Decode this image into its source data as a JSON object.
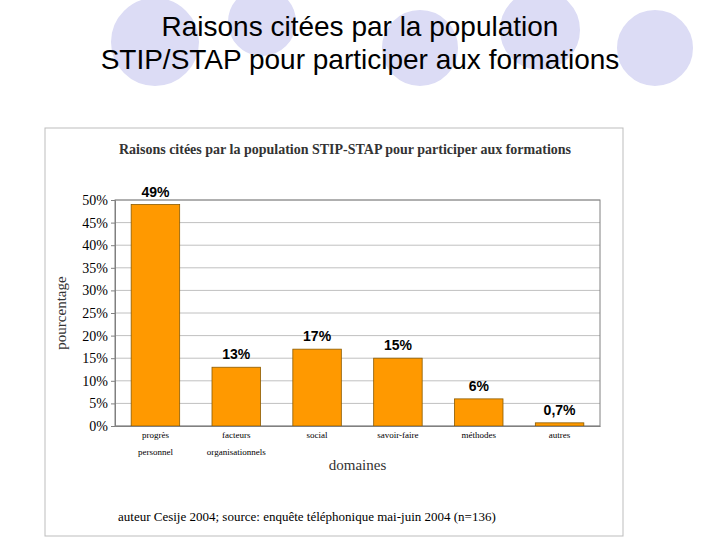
{
  "page": {
    "title": "Raisons citées par la population STIP/STAP pour participer aux formations"
  },
  "chart_data": {
    "type": "bar",
    "title": "Raisons citées par la population STIP-STAP pour participer aux formations",
    "x_label": "domaines",
    "y_label": "pourcentage",
    "annotations": [
      "auteur Cesije 2004; source: enquête téléphonique mai-juin 2004 (n=136)"
    ],
    "categories": [
      "progrès personnel",
      "facteurs organisationnels",
      "social",
      "savoir-faire",
      "méthodes",
      "autres"
    ],
    "values": [
      49,
      13,
      17,
      15,
      6,
      0.7
    ],
    "value_labels": [
      "49%",
      "13%",
      "17%",
      "15%",
      "6%",
      "0,7%"
    ],
    "color": "#ff9900",
    "ylim": [
      0,
      50
    ],
    "yticks": [
      {
        "value": 0,
        "label": "0%"
      },
      {
        "value": 5,
        "label": "5%"
      },
      {
        "value": 10,
        "label": "10%"
      },
      {
        "value": 15,
        "label": "15%"
      },
      {
        "value": 20,
        "label": "20%"
      },
      {
        "value": 25,
        "label": "25%"
      },
      {
        "value": 30,
        "label": "30%"
      },
      {
        "value": 35,
        "label": "35%"
      },
      {
        "value": 40,
        "label": "40%"
      },
      {
        "value": 45,
        "label": "45%"
      },
      {
        "value": 50,
        "label": "50%"
      }
    ],
    "grid": true,
    "data_labels": true
  }
}
